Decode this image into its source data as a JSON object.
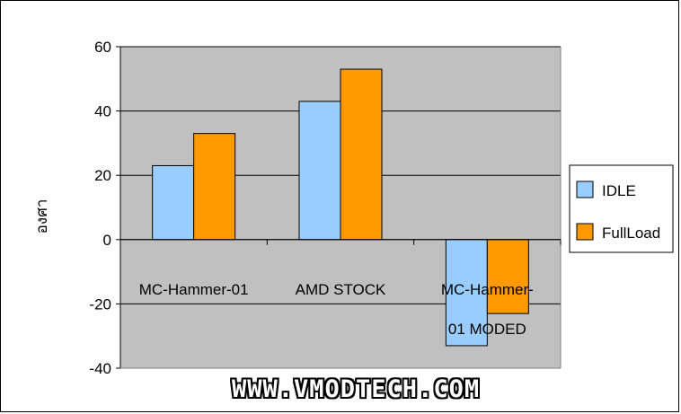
{
  "chart_data": {
    "type": "bar",
    "categories": [
      "MC-Hammer-01",
      "AMD STOCK",
      "MC-Hammer-01 MODED"
    ],
    "category_lines": [
      [
        "MC-Hammer-01"
      ],
      [
        "AMD STOCK"
      ],
      [
        "MC-Hammer-",
        "01 MODED"
      ]
    ],
    "series": [
      {
        "name": "IDLE",
        "values": [
          23,
          43,
          -33
        ]
      },
      {
        "name": "FullLoad",
        "values": [
          33,
          53,
          -23
        ]
      }
    ],
    "ylabel": "องศา",
    "ylim": [
      -40,
      60
    ],
    "yticks": [
      60,
      40,
      20,
      0,
      -20,
      -40
    ],
    "grid": true,
    "legend_position": "right",
    "colors": {
      "plot_bg": "#c0c0c0",
      "IDLE": "#99ccff",
      "FullLoad": "#ff9900",
      "axis": "#000000"
    }
  },
  "watermark": "WWW.VMODTECH.COM"
}
